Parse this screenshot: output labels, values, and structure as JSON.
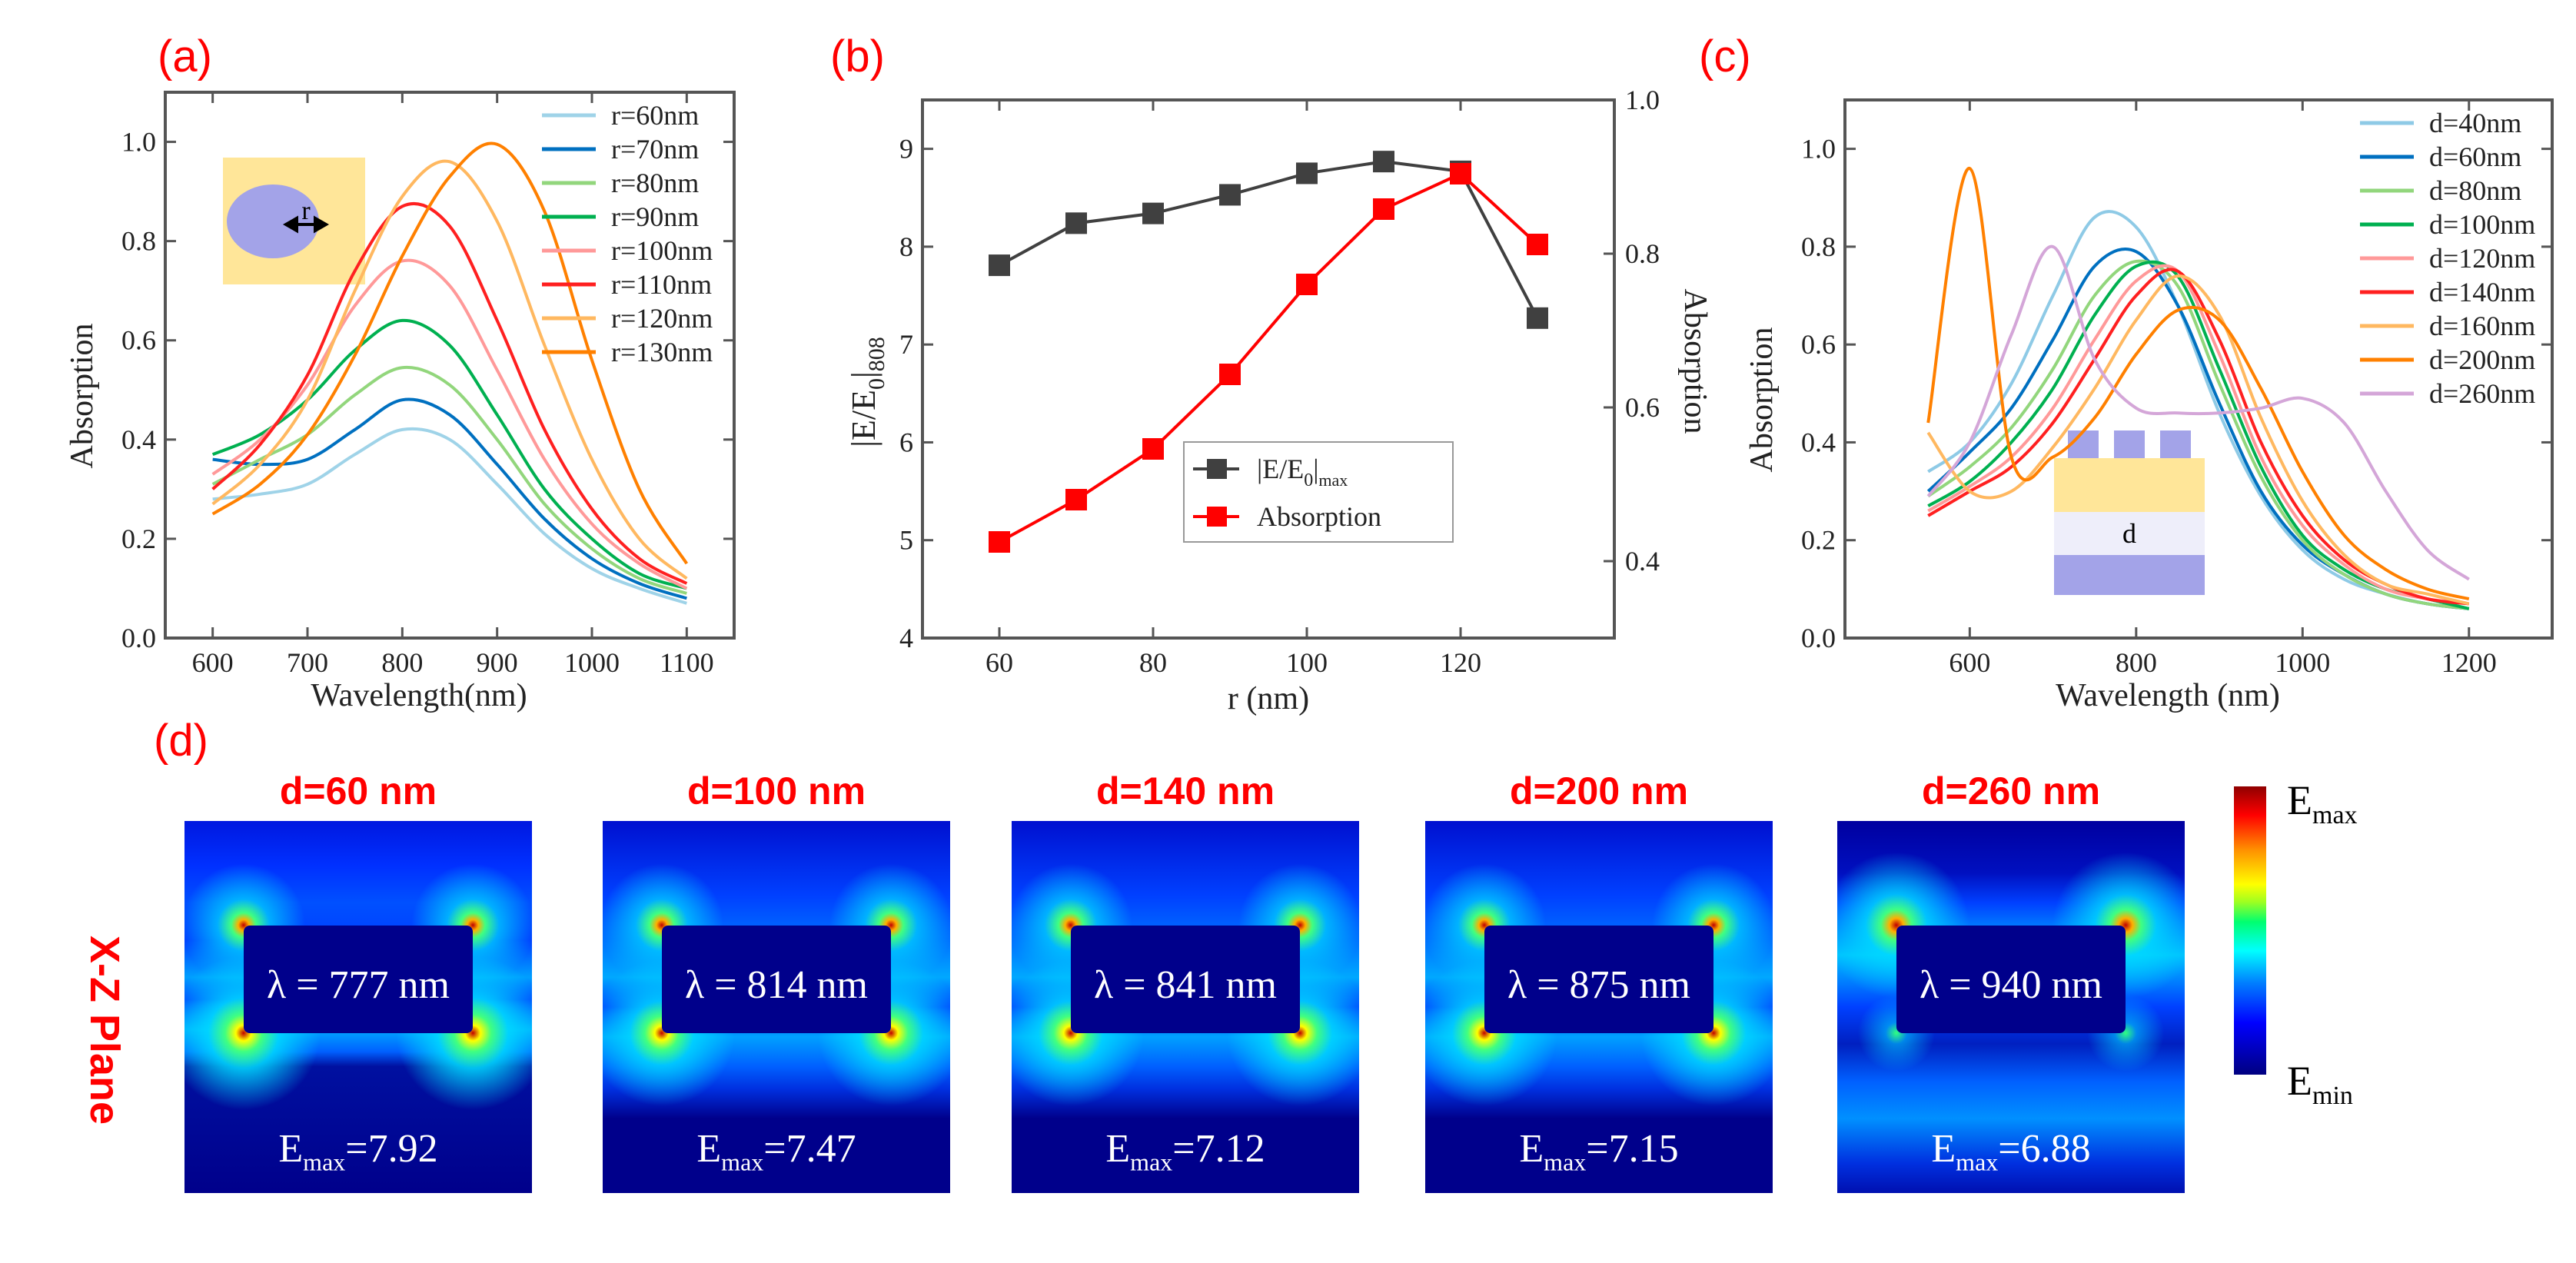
{
  "panels": {
    "a": "(a)",
    "b": "(b)",
    "c": "(c)",
    "d": "(d)"
  },
  "chart_data": [
    {
      "id": "a",
      "type": "line",
      "xlabel": "Wavelength(nm)",
      "ylabel": "Absorption",
      "xlim": [
        550,
        1150
      ],
      "ylim": [
        0,
        1.1
      ],
      "xticks": [
        600,
        700,
        800,
        900,
        1000,
        1100
      ],
      "yticks": [
        "0.0",
        "0.2",
        "0.4",
        "0.6",
        "0.8",
        "1.0"
      ],
      "legend_position": "top-right",
      "inset_label": "r",
      "x": [
        600,
        650,
        700,
        750,
        800,
        850,
        900,
        950,
        1000,
        1050,
        1100
      ],
      "series": [
        {
          "name": "r=60nm",
          "color": "#9fd3e8",
          "values": [
            0.28,
            0.29,
            0.31,
            0.37,
            0.42,
            0.4,
            0.31,
            0.21,
            0.14,
            0.1,
            0.07
          ]
        },
        {
          "name": "r=70nm",
          "color": "#0070c0",
          "values": [
            0.36,
            0.35,
            0.36,
            0.42,
            0.48,
            0.45,
            0.35,
            0.24,
            0.16,
            0.11,
            0.08
          ]
        },
        {
          "name": "r=80nm",
          "color": "#92d67c",
          "values": [
            0.31,
            0.36,
            0.41,
            0.49,
            0.545,
            0.51,
            0.4,
            0.27,
            0.18,
            0.12,
            0.09
          ]
        },
        {
          "name": "r=90nm",
          "color": "#00b050",
          "values": [
            0.37,
            0.41,
            0.48,
            0.58,
            0.64,
            0.59,
            0.45,
            0.3,
            0.2,
            0.13,
            0.1
          ]
        },
        {
          "name": "r=100nm",
          "color": "#ff9999",
          "values": [
            0.33,
            0.4,
            0.51,
            0.67,
            0.76,
            0.71,
            0.54,
            0.36,
            0.23,
            0.15,
            0.1
          ]
        },
        {
          "name": "r=110nm",
          "color": "#ff2020",
          "values": [
            0.3,
            0.39,
            0.53,
            0.74,
            0.87,
            0.83,
            0.64,
            0.42,
            0.26,
            0.16,
            0.11
          ]
        },
        {
          "name": "r=120nm",
          "color": "#ffb860",
          "values": [
            0.27,
            0.35,
            0.48,
            0.7,
            0.89,
            0.96,
            0.84,
            0.59,
            0.36,
            0.2,
            0.12
          ]
        },
        {
          "name": "r=130nm",
          "color": "#ff8000",
          "values": [
            0.25,
            0.31,
            0.41,
            0.57,
            0.77,
            0.93,
            0.995,
            0.86,
            0.56,
            0.3,
            0.15
          ]
        }
      ]
    },
    {
      "id": "b",
      "type": "line",
      "xlabel": "r (nm)",
      "ylabel_main": "|E/E",
      "ylabel_sub1": "0",
      "ylabel_mid": "|",
      "ylabel_sub2": "808",
      "y2label": "Absorption",
      "xlim": [
        50,
        140
      ],
      "ylim": [
        4,
        9.5
      ],
      "y2lim": [
        0.3,
        1.0
      ],
      "xticks": [
        60,
        80,
        100,
        120
      ],
      "yticks": [
        4,
        5,
        6,
        7,
        8,
        9
      ],
      "y2ticks": [
        "0.4",
        "0.6",
        "0.8",
        "1.0"
      ],
      "x": [
        60,
        70,
        80,
        90,
        100,
        110,
        120,
        130
      ],
      "series": [
        {
          "name": "|E/E0|max",
          "label_main": "|E/E",
          "label_sub1": "0",
          "label_mid": "|",
          "label_sub2": "max",
          "axis": "left",
          "color": "#404040",
          "values": [
            7.81,
            8.24,
            8.34,
            8.53,
            8.75,
            8.87,
            8.77,
            7.27
          ]
        },
        {
          "name": "Absorption",
          "label_main": "Absorption",
          "axis": "right",
          "color": "#ff0000",
          "values": [
            0.425,
            0.48,
            0.546,
            0.643,
            0.76,
            0.858,
            0.904,
            0.812
          ]
        }
      ],
      "legend_position": "lower-center"
    },
    {
      "id": "c",
      "type": "line",
      "xlabel": "Wavelength (nm)",
      "ylabel": "Absorption",
      "xlim": [
        450,
        1300
      ],
      "ylim": [
        0,
        1.1
      ],
      "xticks": [
        600,
        800,
        1000,
        1200
      ],
      "yticks": [
        "0.0",
        "0.2",
        "0.4",
        "0.6",
        "0.8",
        "1.0"
      ],
      "legend_position": "top-right",
      "inset_label": "d",
      "x": [
        550,
        600,
        650,
        700,
        750,
        800,
        850,
        900,
        950,
        1000,
        1050,
        1100,
        1150,
        1200
      ],
      "series": [
        {
          "name": "d=40nm",
          "color": "#8ecae6",
          "values": [
            0.34,
            0.4,
            0.52,
            0.7,
            0.86,
            0.84,
            0.68,
            0.46,
            0.29,
            0.18,
            0.12,
            0.09,
            0.07,
            0.06
          ]
        },
        {
          "name": "d=60nm",
          "color": "#0070c0",
          "values": [
            0.3,
            0.38,
            0.47,
            0.61,
            0.76,
            0.79,
            0.68,
            0.48,
            0.3,
            0.19,
            0.13,
            0.09,
            0.07,
            0.06
          ]
        },
        {
          "name": "d=80nm",
          "color": "#92d67c",
          "values": [
            0.29,
            0.35,
            0.43,
            0.55,
            0.7,
            0.77,
            0.72,
            0.52,
            0.33,
            0.2,
            0.13,
            0.09,
            0.07,
            0.06
          ]
        },
        {
          "name": "d=100nm",
          "color": "#00b050",
          "values": [
            0.27,
            0.32,
            0.4,
            0.51,
            0.66,
            0.76,
            0.74,
            0.55,
            0.35,
            0.21,
            0.14,
            0.1,
            0.08,
            0.06
          ]
        },
        {
          "name": "d=120nm",
          "color": "#ff9999",
          "values": [
            0.26,
            0.31,
            0.37,
            0.47,
            0.61,
            0.73,
            0.75,
            0.58,
            0.37,
            0.23,
            0.15,
            0.1,
            0.08,
            0.07
          ]
        },
        {
          "name": "d=140nm",
          "color": "#ff2020",
          "values": [
            0.25,
            0.3,
            0.35,
            0.44,
            0.57,
            0.7,
            0.75,
            0.61,
            0.4,
            0.25,
            0.16,
            0.11,
            0.08,
            0.07
          ]
        },
        {
          "name": "d=160nm",
          "color": "#ffb860",
          "values": [
            0.42,
            0.3,
            0.3,
            0.39,
            0.51,
            0.65,
            0.74,
            0.66,
            0.45,
            0.28,
            0.17,
            0.11,
            0.09,
            0.07
          ]
        },
        {
          "name": "d=200nm",
          "color": "#ff8000",
          "values": [
            0.44,
            0.96,
            0.37,
            0.37,
            0.45,
            0.58,
            0.67,
            0.65,
            0.51,
            0.34,
            0.21,
            0.14,
            0.1,
            0.08
          ]
        },
        {
          "name": "d=260nm",
          "color": "#d4a6d8",
          "values": [
            0.29,
            0.4,
            0.62,
            0.8,
            0.57,
            0.47,
            0.46,
            0.46,
            0.47,
            0.49,
            0.44,
            0.3,
            0.18,
            0.12
          ]
        }
      ]
    },
    {
      "id": "d",
      "type": "heatmap",
      "plane_label": "X-Z Plane",
      "maps": [
        {
          "title": "d=60 nm",
          "lambda": "λ = 777 nm",
          "emax_main": "E",
          "emax_sub": "max",
          "emax_value": "=7.92"
        },
        {
          "title": "d=100 nm",
          "lambda": "λ = 814 nm",
          "emax_main": "E",
          "emax_sub": "max",
          "emax_value": "=7.47"
        },
        {
          "title": "d=140 nm",
          "lambda": "λ = 841 nm",
          "emax_main": "E",
          "emax_sub": "max",
          "emax_value": "=7.12"
        },
        {
          "title": "d=200 nm",
          "lambda": "λ = 875 nm",
          "emax_main": "E",
          "emax_sub": "max",
          "emax_value": "=7.15"
        },
        {
          "title": "d=260 nm",
          "lambda": "λ = 940 nm",
          "emax_main": "E",
          "emax_sub": "max",
          "emax_value": "=6.88"
        }
      ],
      "colorbar": {
        "max_main": "E",
        "max_sub": "max",
        "min_main": "E",
        "min_sub": "min"
      }
    }
  ]
}
